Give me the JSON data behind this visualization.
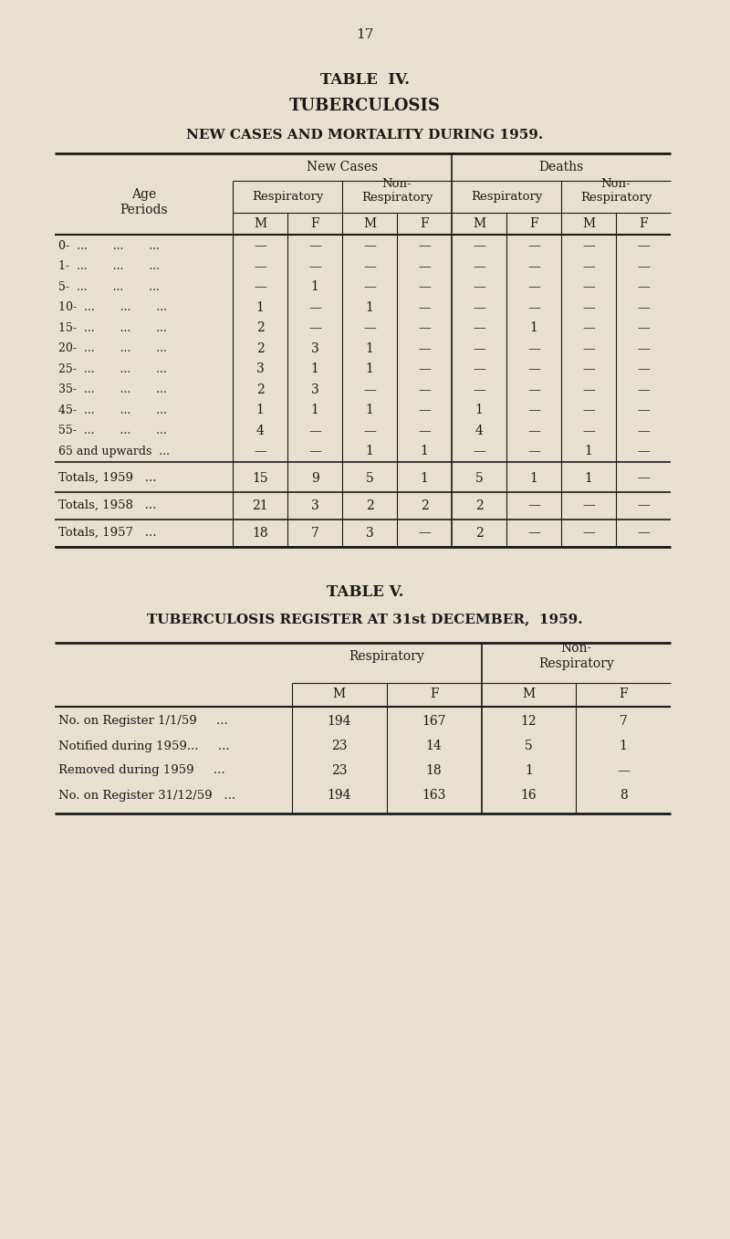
{
  "bg_color": "#e8e0d0",
  "text_color": "#1a1a1a",
  "page_number": "17",
  "table4": {
    "title1": "TABLE  IV.",
    "title2": "TUBERCULOSIS",
    "title3": "NEW CASES AND MORTALITY DURING 1959.",
    "age_labels": [
      "0-  ...       ...       ...",
      "1-  ...       ...       ...",
      "5-  ...       ...       ...",
      "10-  ...       ...       ...",
      "15-  ...       ...       ...",
      "20-  ...       ...       ...",
      "25-  ...       ...       ...",
      "35-  ...       ...       ...",
      "45-  ...       ...       ...",
      "55-  ...       ...       ...",
      "65 and upwards  ..."
    ],
    "data_rows": [
      [
        "—",
        "—",
        "—",
        "—",
        "—",
        "—",
        "—",
        "—"
      ],
      [
        "—",
        "—",
        "—",
        "—",
        "—",
        "—",
        "—",
        "—"
      ],
      [
        "—",
        "1",
        "—",
        "—",
        "—",
        "—",
        "—",
        "—"
      ],
      [
        "1",
        "—",
        "1",
        "—",
        "—",
        "—",
        "—",
        "—"
      ],
      [
        "2",
        "—",
        "—",
        "—",
        "—",
        "1",
        "—",
        "—"
      ],
      [
        "2",
        "3",
        "1",
        "—",
        "—",
        "—",
        "—",
        "—"
      ],
      [
        "3",
        "1",
        "1",
        "—",
        "—",
        "—",
        "—",
        "—"
      ],
      [
        "2",
        "3",
        "—",
        "—",
        "—",
        "—",
        "—",
        "—"
      ],
      [
        "1",
        "1",
        "1",
        "—",
        "1",
        "—",
        "—",
        "—"
      ],
      [
        "4",
        "—",
        "—",
        "—",
        "4",
        "—",
        "—",
        "—"
      ],
      [
        "—",
        "—",
        "1",
        "1",
        "—",
        "—",
        "1",
        "—"
      ]
    ],
    "total_rows": [
      {
        "label": "Totals, 1959   ...",
        "values": [
          "15",
          "9",
          "5",
          "1",
          "5",
          "1",
          "1",
          "—"
        ]
      },
      {
        "label": "Totals, 1958   ...",
        "values": [
          "21",
          "3",
          "2",
          "2",
          "2",
          "—",
          "—",
          "—"
        ]
      },
      {
        "label": "Totals, 1957   ...",
        "values": [
          "18",
          "7",
          "3",
          "—",
          "2",
          "—",
          "—",
          "—"
        ]
      }
    ]
  },
  "table5": {
    "title1": "TABLE V.",
    "title2": "TUBERCULOSIS REGISTER AT 31st DECEMBER,  1959.",
    "row_labels": [
      "No. on Register 1/1/59     ...",
      "Notified during 1959...     ...",
      "Removed during 1959     ...",
      "No. on Register 31/12/59   ..."
    ],
    "data_rows": [
      [
        "194",
        "167",
        "12",
        "7"
      ],
      [
        "23",
        "14",
        "5",
        "1"
      ],
      [
        "23",
        "18",
        "1",
        "—"
      ],
      [
        "194",
        "163",
        "16",
        "8"
      ]
    ]
  }
}
